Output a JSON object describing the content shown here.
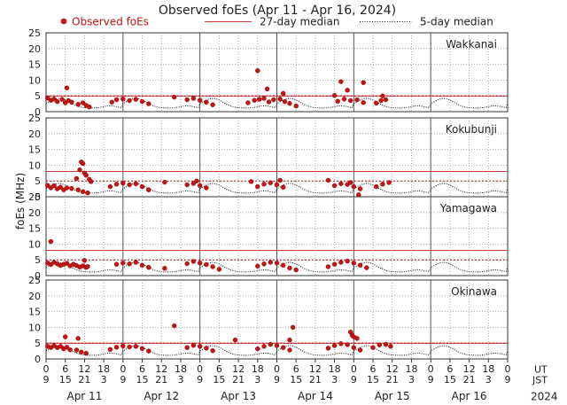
{
  "chart_data": {
    "type": "scatter",
    "title": "Observed foEs (Apr 11 - Apr 16, 2024)",
    "ylabel": "foEs (MHz)",
    "legend": {
      "observed": "Observed foEs",
      "median27": "27-day median",
      "median5": "5-day median"
    },
    "colors": {
      "observed": "#c41414",
      "median27": "#c83c3c",
      "median5": "#111111",
      "grid": "#9a9a9a"
    },
    "ylim": [
      0,
      25
    ],
    "yticks": [
      0,
      5,
      10,
      15,
      20,
      25
    ],
    "xlim_hours": [
      0,
      144
    ],
    "days": [
      "Apr 11",
      "Apr 12",
      "Apr 13",
      "Apr 14",
      "Apr 15",
      "Apr 16"
    ],
    "year_label": "2024",
    "ut_label": "UT",
    "jst_label": "JST",
    "ut_ticks": [
      "0",
      "6",
      "12",
      "18",
      "0",
      "6",
      "12",
      "18",
      "0",
      "6",
      "12",
      "18",
      "0",
      "6",
      "12",
      "18",
      "0",
      "6",
      "12",
      "18",
      "0",
      "6",
      "12",
      "18",
      "0"
    ],
    "jst_ticks": [
      "9",
      "15",
      "21",
      "3",
      "9",
      "15",
      "21",
      "3",
      "9",
      "15",
      "21",
      "3",
      "9",
      "15",
      "21",
      "3",
      "9",
      "15",
      "21",
      "3",
      "9",
      "15",
      "21",
      "3",
      "9"
    ],
    "stations": [
      {
        "name": "Wakkanai",
        "median27": 5.0,
        "observed_end_hour": 107,
        "observed": [
          [
            0.5,
            4.3
          ],
          [
            1.5,
            3.6
          ],
          [
            2.5,
            4.0
          ],
          [
            3.5,
            3.2
          ],
          [
            5.0,
            3.9
          ],
          [
            6.0,
            2.8
          ],
          [
            7.0,
            3.5
          ],
          [
            8.0,
            3.0
          ],
          [
            10.0,
            2.3
          ],
          [
            11.5,
            2.8
          ],
          [
            12.5,
            2.0
          ],
          [
            13.5,
            1.5
          ],
          [
            20.5,
            3.0
          ],
          [
            22.0,
            3.8
          ],
          [
            24.0,
            4.0
          ],
          [
            26.0,
            3.5
          ],
          [
            28.0,
            3.9
          ],
          [
            30.0,
            3.2
          ],
          [
            32.0,
            2.5
          ],
          [
            44.0,
            3.8
          ],
          [
            46.0,
            4.2
          ],
          [
            48.0,
            3.6
          ],
          [
            50.0,
            3.0
          ],
          [
            52.0,
            2.2
          ],
          [
            63.0,
            2.8
          ],
          [
            65.0,
            3.6
          ],
          [
            66.5,
            3.9
          ],
          [
            68.0,
            4.2
          ],
          [
            69.5,
            3.1
          ],
          [
            71.0,
            3.8
          ],
          [
            73.0,
            4.0
          ],
          [
            74.5,
            3.2
          ],
          [
            76.0,
            2.6
          ],
          [
            91.0,
            3.3
          ],
          [
            93.0,
            4.0
          ],
          [
            95.0,
            3.5
          ],
          [
            97.0,
            3.8
          ],
          [
            99.0,
            2.9
          ],
          [
            103.0,
            2.7
          ],
          [
            104.5,
            3.5
          ],
          [
            106.0,
            3.8
          ],
          [
            6.5,
            7.5
          ],
          [
            40.0,
            4.6
          ],
          [
            66.0,
            13.0
          ],
          [
            69.0,
            7.2
          ],
          [
            74.0,
            5.8
          ],
          [
            78.0,
            1.8
          ],
          [
            90.0,
            5.1
          ],
          [
            92.0,
            9.5
          ],
          [
            94.0,
            6.8
          ],
          [
            99.0,
            9.2
          ],
          [
            105.0,
            5.0
          ]
        ]
      },
      {
        "name": "Kokubunji",
        "median27": 8.0,
        "observed_end_hour": 108,
        "observed": [
          [
            0.5,
            3.6
          ],
          [
            1.5,
            2.8
          ],
          [
            2.5,
            3.5
          ],
          [
            3.5,
            2.5
          ],
          [
            4.5,
            3.0
          ],
          [
            5.5,
            2.2
          ],
          [
            6.5,
            2.8
          ],
          [
            8.0,
            2.6
          ],
          [
            10.0,
            2.2
          ],
          [
            11.5,
            1.6
          ],
          [
            13.0,
            1.2
          ],
          [
            20.0,
            3.2
          ],
          [
            22.0,
            4.0
          ],
          [
            24.0,
            4.3
          ],
          [
            26.0,
            3.8
          ],
          [
            28.0,
            4.1
          ],
          [
            30.0,
            3.2
          ],
          [
            32.0,
            2.2
          ],
          [
            44.0,
            3.8
          ],
          [
            46.0,
            4.2
          ],
          [
            48.0,
            3.5
          ],
          [
            50.0,
            2.8
          ],
          [
            66.0,
            3.2
          ],
          [
            68.0,
            4.0
          ],
          [
            70.0,
            4.4
          ],
          [
            72.0,
            3.8
          ],
          [
            74.0,
            3.0
          ],
          [
            90.0,
            3.5
          ],
          [
            92.0,
            4.1
          ],
          [
            94.0,
            3.9
          ],
          [
            96.0,
            3.2
          ],
          [
            98.0,
            2.5
          ],
          [
            103.0,
            3.2
          ],
          [
            105.0,
            4.0
          ],
          [
            107.0,
            4.5
          ],
          [
            10.5,
            8.5
          ],
          [
            11.0,
            11.0
          ],
          [
            11.5,
            10.5
          ],
          [
            12.0,
            7.5
          ],
          [
            12.5,
            6.8
          ],
          [
            13.5,
            5.5
          ],
          [
            9.5,
            5.8
          ],
          [
            14.0,
            4.8
          ],
          [
            37.0,
            4.6
          ],
          [
            47.0,
            5.0
          ],
          [
            64.0,
            4.8
          ],
          [
            73.0,
            5.2
          ],
          [
            88.0,
            5.2
          ],
          [
            95.0,
            4.5
          ],
          [
            97.5,
            0.6
          ]
        ]
      },
      {
        "name": "Yamagawa",
        "median27": 8.0,
        "observed_end_hour": 101,
        "observed": [
          [
            0.5,
            4.0
          ],
          [
            1.5,
            3.5
          ],
          [
            2.5,
            4.2
          ],
          [
            3.5,
            3.7
          ],
          [
            4.5,
            3.2
          ],
          [
            5.5,
            3.6
          ],
          [
            6.5,
            3.9
          ],
          [
            7.5,
            3.1
          ],
          [
            8.5,
            3.6
          ],
          [
            9.5,
            3.2
          ],
          [
            10.5,
            2.7
          ],
          [
            11.5,
            3.1
          ],
          [
            12.5,
            2.6
          ],
          [
            13.0,
            2.9
          ],
          [
            22.0,
            3.6
          ],
          [
            24.0,
            4.0
          ],
          [
            26.0,
            3.7
          ],
          [
            28.0,
            4.2
          ],
          [
            30.0,
            3.3
          ],
          [
            32.0,
            2.6
          ],
          [
            44.0,
            3.8
          ],
          [
            46.0,
            4.5
          ],
          [
            48.0,
            4.0
          ],
          [
            50.0,
            3.5
          ],
          [
            52.0,
            2.8
          ],
          [
            54.0,
            2.0
          ],
          [
            66.0,
            3.0
          ],
          [
            68.0,
            3.7
          ],
          [
            70.0,
            4.2
          ],
          [
            72.0,
            4.0
          ],
          [
            74.0,
            3.3
          ],
          [
            76.0,
            2.4
          ],
          [
            78.0,
            1.8
          ],
          [
            88.0,
            2.8
          ],
          [
            90.0,
            3.6
          ],
          [
            92.0,
            4.2
          ],
          [
            94.0,
            4.6
          ],
          [
            96.0,
            4.0
          ],
          [
            98.0,
            3.3
          ],
          [
            100.0,
            2.5
          ],
          [
            1.5,
            10.8
          ],
          [
            12.0,
            4.8
          ],
          [
            37.0,
            2.3
          ]
        ]
      },
      {
        "name": "Okinawa",
        "median27": 5.0,
        "observed_end_hour": 108,
        "observed": [
          [
            0.5,
            4.0
          ],
          [
            1.5,
            3.6
          ],
          [
            2.5,
            4.2
          ],
          [
            3.5,
            3.6
          ],
          [
            4.5,
            4.0
          ],
          [
            5.5,
            3.2
          ],
          [
            6.5,
            3.7
          ],
          [
            7.5,
            2.9
          ],
          [
            9.5,
            2.8
          ],
          [
            11.0,
            2.2
          ],
          [
            12.5,
            1.8
          ],
          [
            20.0,
            3.0
          ],
          [
            22.0,
            3.7
          ],
          [
            24.0,
            4.1
          ],
          [
            26.0,
            3.8
          ],
          [
            28.0,
            4.0
          ],
          [
            30.0,
            3.3
          ],
          [
            32.0,
            2.5
          ],
          [
            44.0,
            3.6
          ],
          [
            46.0,
            4.3
          ],
          [
            48.0,
            4.0
          ],
          [
            50.0,
            3.4
          ],
          [
            52.0,
            2.6
          ],
          [
            66.0,
            3.2
          ],
          [
            68.0,
            4.0
          ],
          [
            70.0,
            4.6
          ],
          [
            72.0,
            4.2
          ],
          [
            74.0,
            3.6
          ],
          [
            76.0,
            2.8
          ],
          [
            88.0,
            3.4
          ],
          [
            90.0,
            4.2
          ],
          [
            92.0,
            4.8
          ],
          [
            94.0,
            4.5
          ],
          [
            96.0,
            3.6
          ],
          [
            98.0,
            2.8
          ],
          [
            102.0,
            3.6
          ],
          [
            104.0,
            4.4
          ],
          [
            106.0,
            4.6
          ],
          [
            107.5,
            4.0
          ],
          [
            6.0,
            7.0
          ],
          [
            10.0,
            6.5
          ],
          [
            40.0,
            10.5
          ],
          [
            59.0,
            6.0
          ],
          [
            77.0,
            10.0
          ],
          [
            76.0,
            6.0
          ],
          [
            95.0,
            8.5
          ],
          [
            95.5,
            7.5
          ],
          [
            96.0,
            7.0
          ],
          [
            97.0,
            6.5
          ]
        ]
      }
    ]
  }
}
